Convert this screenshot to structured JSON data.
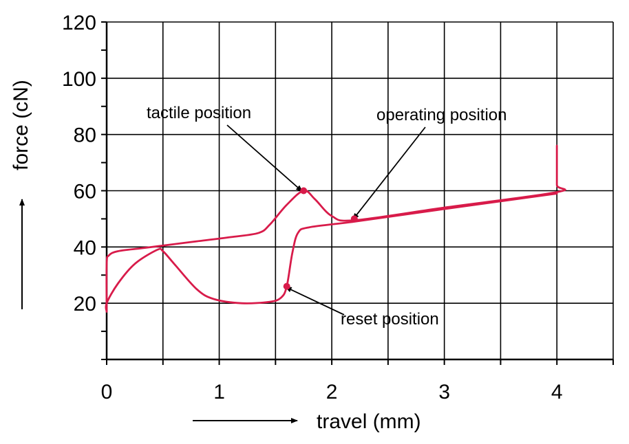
{
  "chart_data": {
    "type": "line",
    "title": "",
    "xlabel": "travel (mm)",
    "ylabel": "force (cN)",
    "xlim": [
      0,
      4.5
    ],
    "ylim": [
      0,
      120
    ],
    "x_ticks": [
      0,
      1,
      2,
      3,
      4
    ],
    "y_ticks": [
      20,
      40,
      60,
      80,
      100,
      120
    ],
    "grid": true,
    "line_color": "#d81b4a",
    "series": [
      {
        "x": [
          0.0,
          0.0,
          0.02,
          0.1,
          0.3,
          0.5,
          0.8,
          1.1,
          1.35,
          1.45,
          1.6,
          1.75,
          1.85,
          2.0,
          2.2,
          3.0,
          4.0,
          4.0,
          4.0,
          4.0
        ],
        "y": [
          17,
          34,
          37,
          38.5,
          39.5,
          40.5,
          42,
          43.5,
          45,
          48,
          55,
          60,
          57,
          51,
          49.5,
          54,
          59.5,
          62,
          70,
          76
        ]
      },
      {
        "x": [
          4.0,
          3.0,
          2.2,
          1.8,
          1.7,
          1.65,
          1.6,
          1.55,
          1.45,
          1.2,
          0.95,
          0.8,
          0.6,
          0.5,
          0.45,
          0.25,
          0.1,
          0.0,
          0.0
        ],
        "y": [
          59,
          53.5,
          49,
          47,
          45,
          38,
          26,
          22,
          20.5,
          20,
          21.5,
          25,
          34,
          38.5,
          39,
          34,
          27,
          20,
          17
        ]
      }
    ],
    "markers": [
      {
        "x": 1.75,
        "y": 60
      },
      {
        "x": 2.2,
        "y": 50
      },
      {
        "x": 1.6,
        "y": 26
      }
    ],
    "annotations": [
      {
        "text": "tactile position",
        "x": 1.75,
        "y": 60
      },
      {
        "text": "operating position",
        "x": 2.2,
        "y": 50
      },
      {
        "text": "reset position",
        "x": 1.6,
        "y": 26
      }
    ]
  }
}
